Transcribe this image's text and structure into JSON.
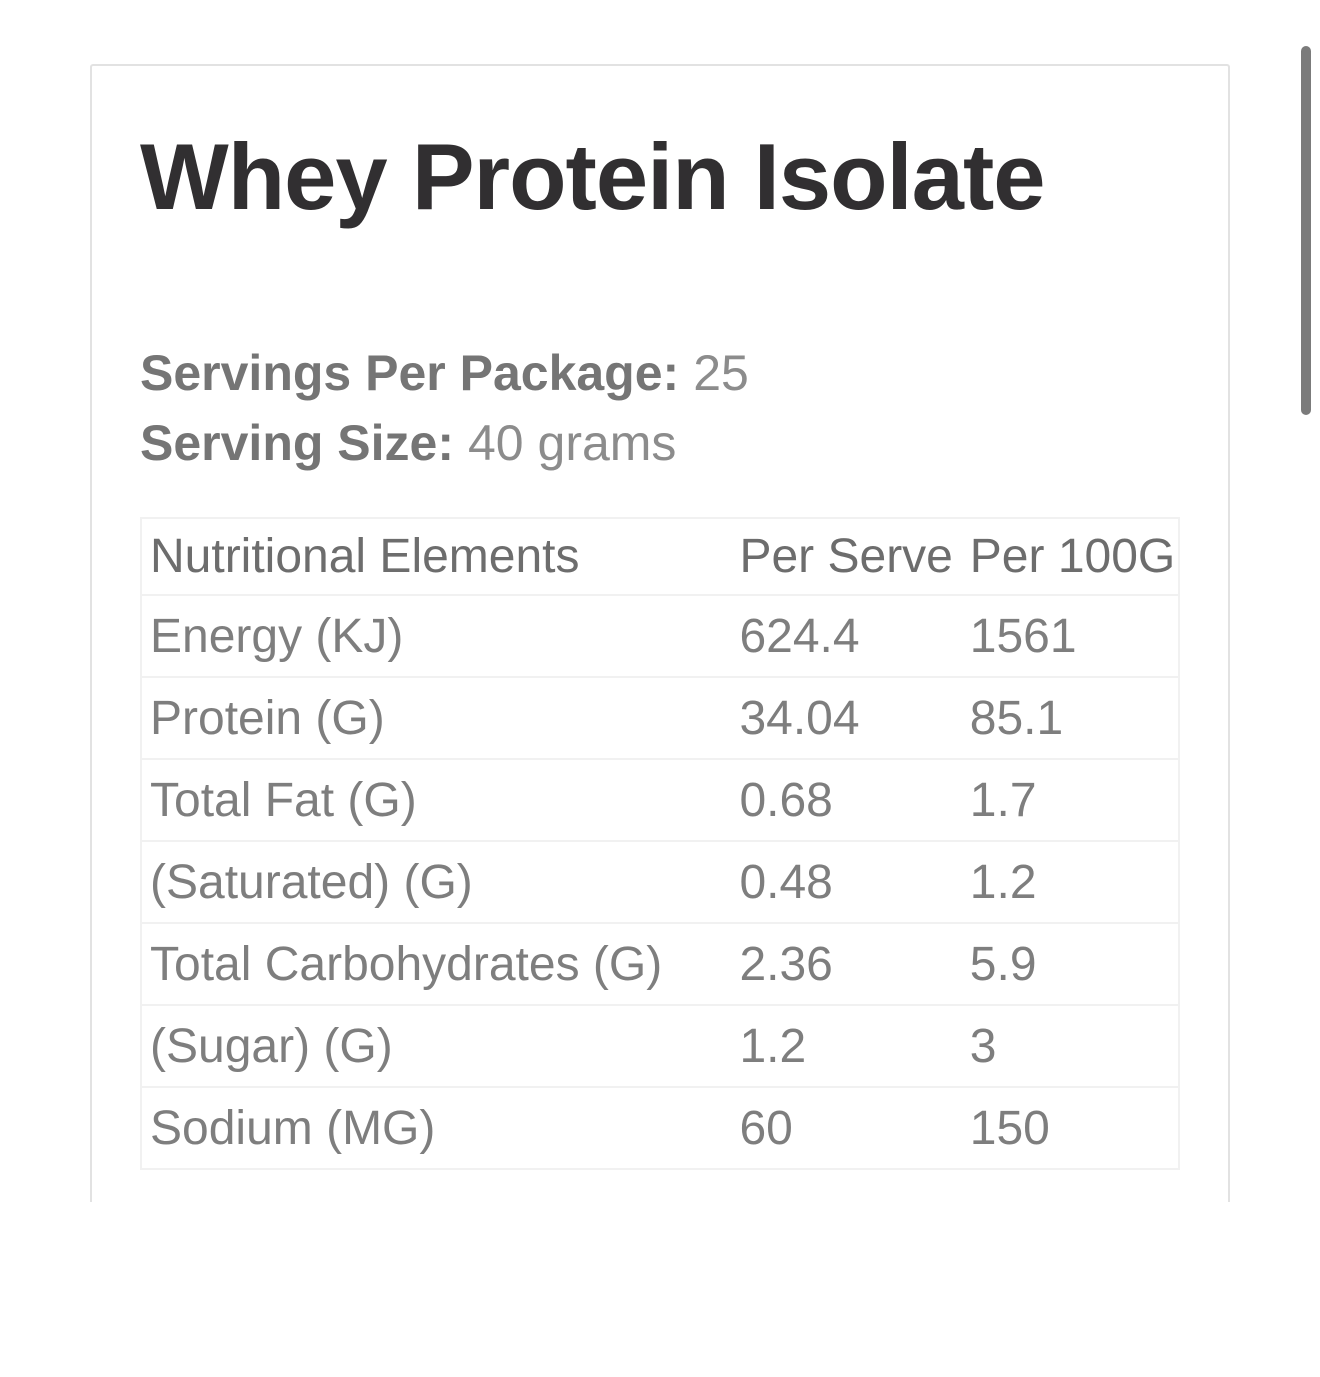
{
  "title": "Whey Protein Isolate",
  "serving_info": {
    "servings_label": "Servings Per Package:",
    "servings_value": "25",
    "size_label": "Serving Size:",
    "size_value": "40 grams"
  },
  "table": {
    "headers": [
      "Nutritional Elements",
      "Per Serve",
      "Per 100G"
    ],
    "rows": [
      {
        "label": "Energy (KJ)",
        "per_serve": "624.4",
        "per_100g": "1561"
      },
      {
        "label": "Protein (G)",
        "per_serve": "34.04",
        "per_100g": "85.1"
      },
      {
        "label": "Total Fat (G)",
        "per_serve": "0.68",
        "per_100g": "1.7"
      },
      {
        "label": "(Saturated) (G)",
        "per_serve": "0.48",
        "per_100g": "1.2"
      },
      {
        "label": "Total Carbohydrates (G)",
        "per_serve": "2.36",
        "per_100g": "5.9"
      },
      {
        "label": "(Sugar) (G)",
        "per_serve": "1.2",
        "per_100g": "3"
      },
      {
        "label": "Sodium (MG)",
        "per_serve": "60",
        "per_100g": "150"
      }
    ]
  },
  "colors": {
    "title_text": "#312f31",
    "serving_label_text": "#757575",
    "serving_value_text": "#8c8c8c",
    "table_header_text": "#6d6d6d",
    "table_body_text": "#7e7e7e",
    "table_border": "#f1f1f1",
    "card_border": "#e2e2e2",
    "scrollbar_thumb": "#7b7b7b",
    "page_background": "#ffffff"
  }
}
